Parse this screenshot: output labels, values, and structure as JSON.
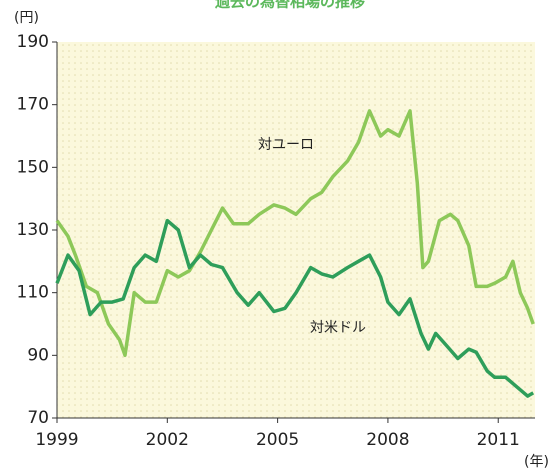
{
  "chart_data": {
    "type": "line",
    "title": "過去の為替相場の推移",
    "y_label": "(円)",
    "x_label": "(年)",
    "annotations": [
      "対ユーロ",
      "対米ドル"
    ],
    "xlim": [
      1999,
      2012
    ],
    "xticks": [
      1999,
      2002,
      2005,
      2008,
      2011
    ],
    "ylim": [
      70,
      190
    ],
    "yticks": [
      70,
      90,
      110,
      130,
      150,
      170,
      190
    ],
    "series": [
      {
        "name": "対ユーロ",
        "color": "#8dc859",
        "x": [
          1999.0,
          1999.3,
          1999.5,
          1999.8,
          2000.1,
          2000.4,
          2000.7,
          2000.85,
          2001.1,
          2001.4,
          2001.7,
          2002.0,
          2002.3,
          2002.6,
          2002.9,
          2003.2,
          2003.5,
          2003.8,
          2004.2,
          2004.5,
          2004.9,
          2005.2,
          2005.5,
          2005.9,
          2006.2,
          2006.5,
          2006.9,
          2007.2,
          2007.5,
          2007.8,
          2008.0,
          2008.3,
          2008.6,
          2008.8,
          2008.95,
          2009.1,
          2009.4,
          2009.7,
          2009.9,
          2010.2,
          2010.4,
          2010.7,
          2010.9,
          2011.2,
          2011.4,
          2011.6,
          2011.8,
          2011.95
        ],
        "values": [
          133,
          128,
          122,
          112,
          110,
          100,
          95,
          90,
          110,
          107,
          107,
          117,
          115,
          117,
          123,
          130,
          137,
          132,
          132,
          135,
          138,
          137,
          135,
          140,
          142,
          147,
          152,
          158,
          168,
          160,
          162,
          160,
          168,
          145,
          118,
          120,
          133,
          135,
          133,
          125,
          112,
          112,
          113,
          115,
          120,
          110,
          105,
          100
        ]
      },
      {
        "name": "対米ドル",
        "color": "#2e9e5a",
        "x": [
          1999.0,
          1999.3,
          1999.6,
          1999.9,
          2000.2,
          2000.5,
          2000.8,
          2001.1,
          2001.4,
          2001.7,
          2002.0,
          2002.3,
          2002.6,
          2002.9,
          2003.2,
          2003.5,
          2003.9,
          2004.2,
          2004.5,
          2004.9,
          2005.2,
          2005.5,
          2005.9,
          2006.2,
          2006.5,
          2006.9,
          2007.2,
          2007.5,
          2007.8,
          2008.0,
          2008.3,
          2008.6,
          2008.9,
          2009.1,
          2009.3,
          2009.6,
          2009.9,
          2010.2,
          2010.4,
          2010.7,
          2010.9,
          2011.2,
          2011.5,
          2011.8,
          2011.95
        ],
        "values": [
          113,
          122,
          117,
          103,
          107,
          107,
          108,
          118,
          122,
          120,
          133,
          130,
          118,
          122,
          119,
          118,
          110,
          106,
          110,
          104,
          105,
          110,
          118,
          116,
          115,
          118,
          120,
          122,
          115,
          107,
          103,
          108,
          97,
          92,
          97,
          93,
          89,
          92,
          91,
          85,
          83,
          83,
          80,
          77,
          78
        ]
      }
    ]
  }
}
